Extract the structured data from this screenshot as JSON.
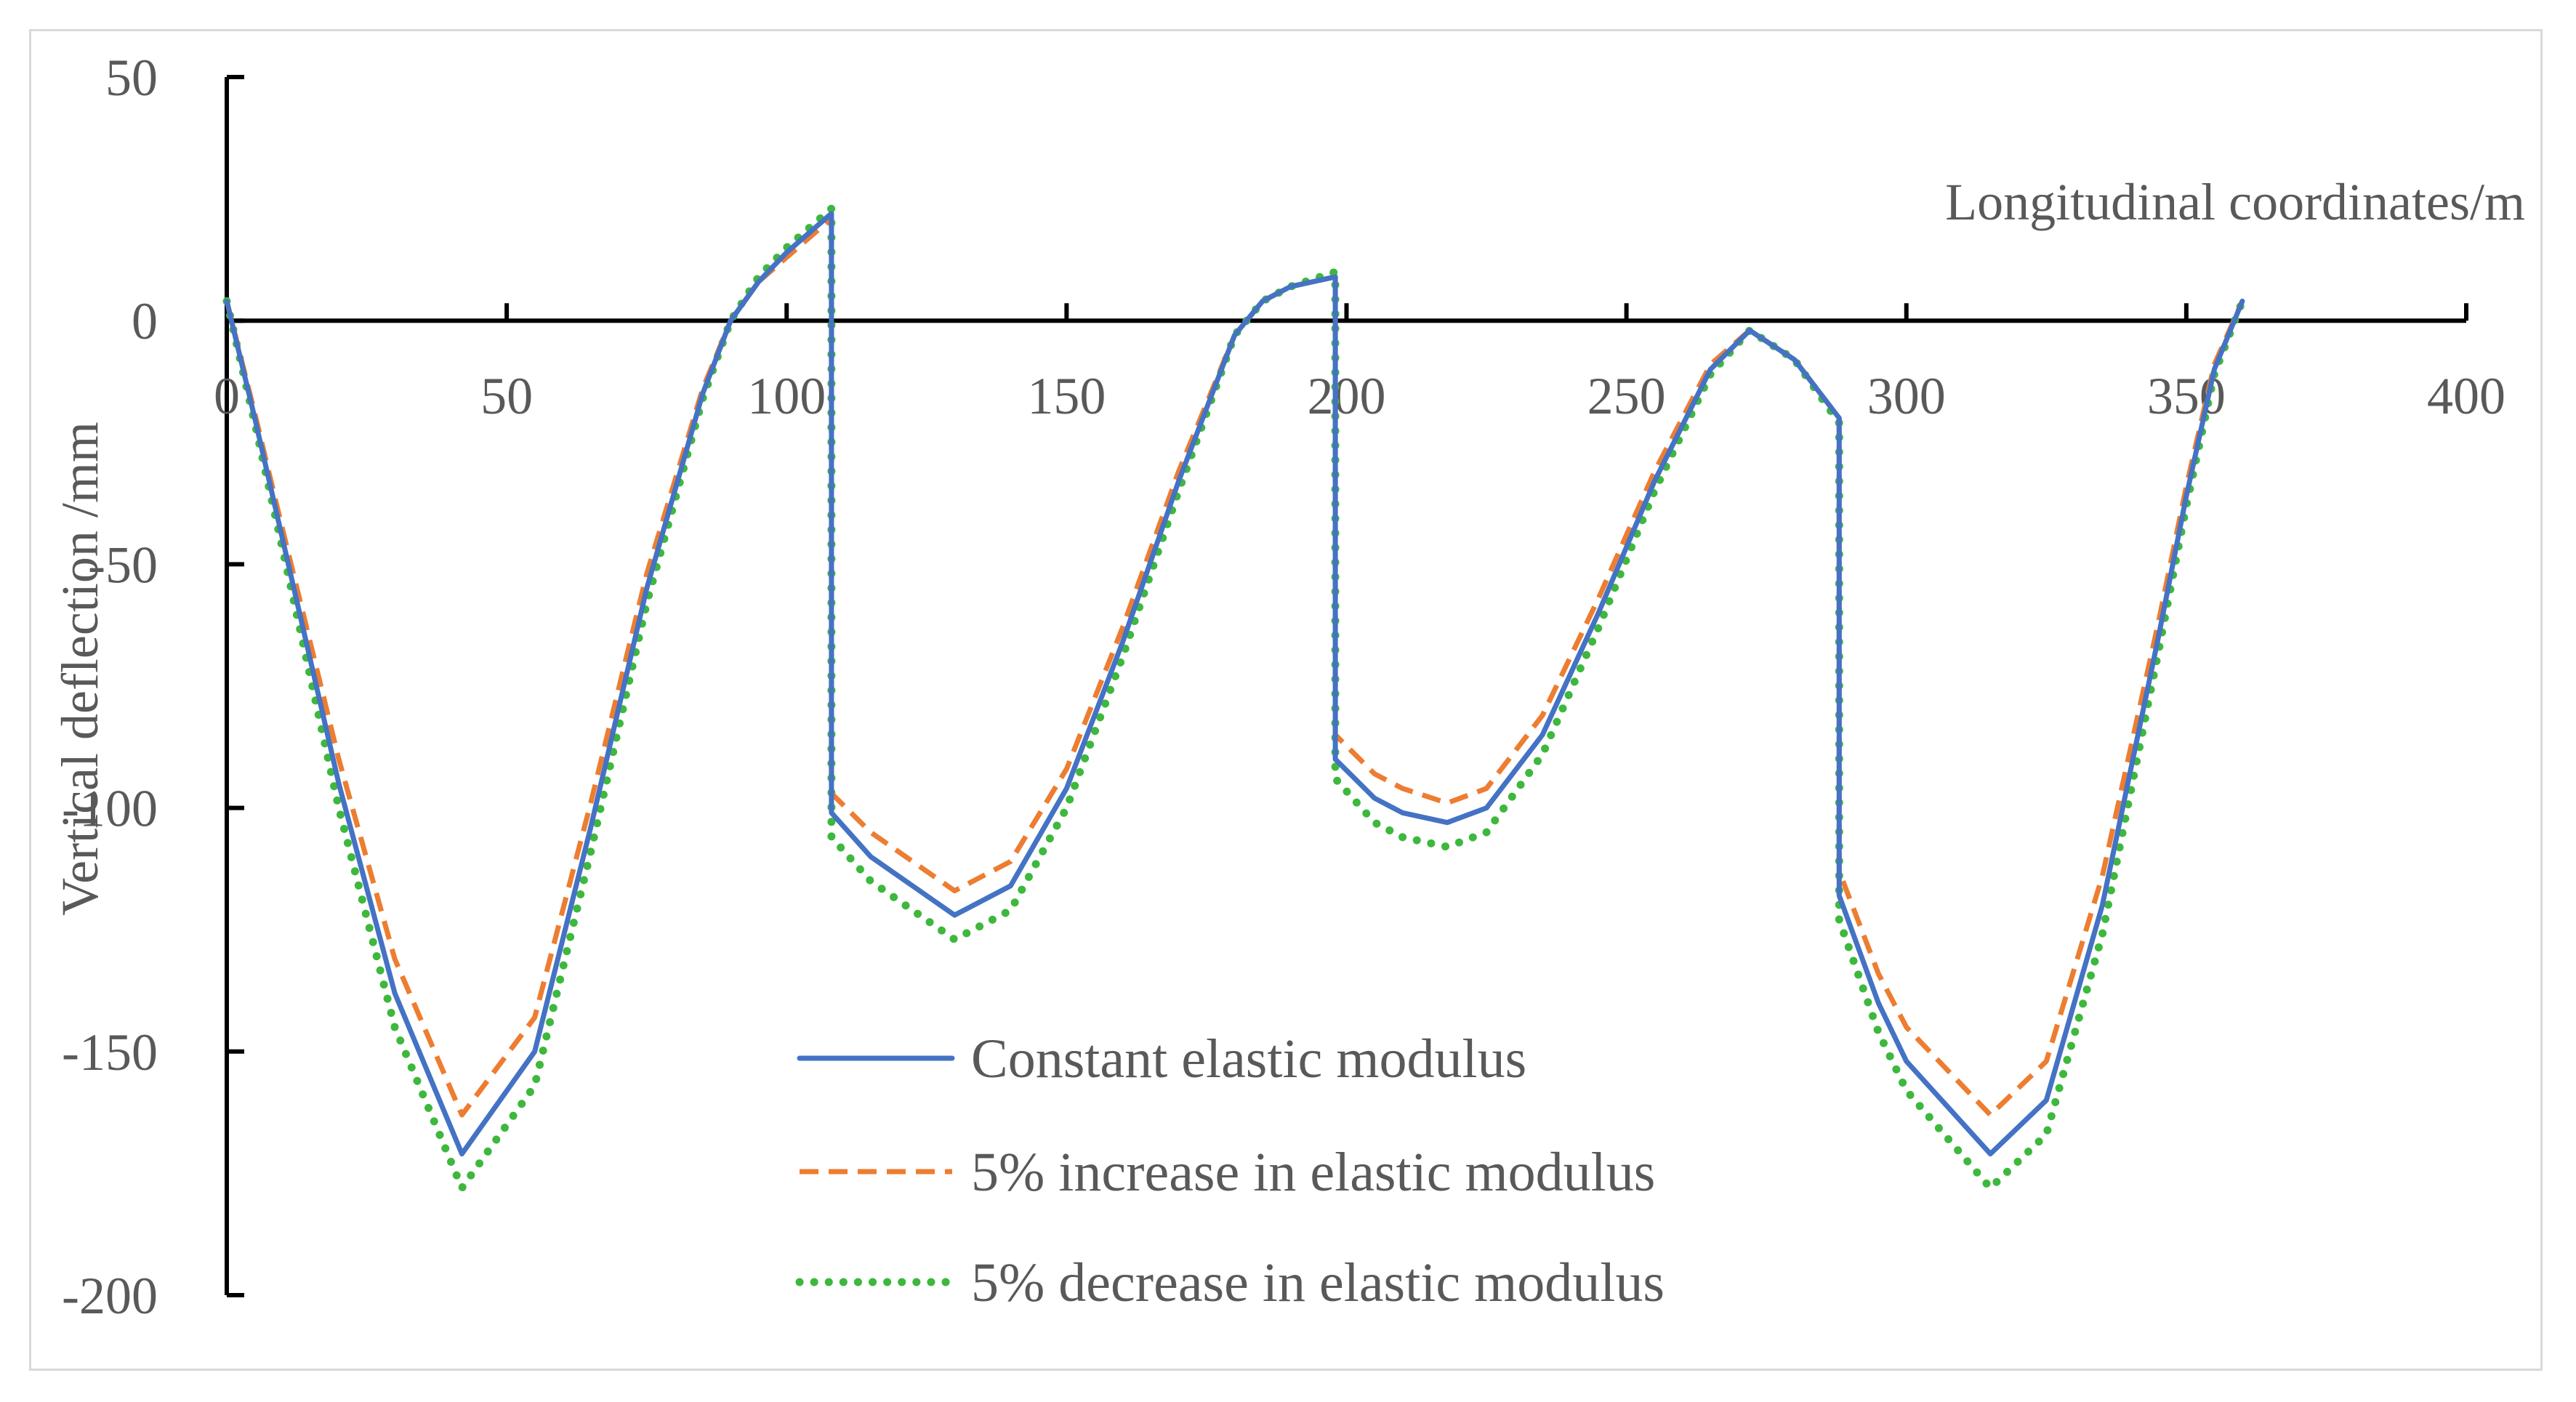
{
  "chart_data": {
    "type": "line",
    "title": "",
    "xlabel": "Longitudinal coordinates/m",
    "ylabel": "Vertical deflection /mm",
    "xlim": [
      0,
      400
    ],
    "ylim": [
      -200,
      50
    ],
    "x_ticks": [
      "0",
      "50",
      "100",
      "150",
      "200",
      "250",
      "300",
      "350",
      "400"
    ],
    "y_ticks": [
      "50",
      "0",
      "-50",
      "-100",
      "-150",
      "-200"
    ],
    "grid": false,
    "legend_position": "bottom-center",
    "series": [
      {
        "name": "Constant elastic modulus",
        "color": "#4472C4",
        "style": "solid",
        "x": [
          0,
          5,
          10,
          20,
          30,
          42,
          55,
          65,
          75,
          85,
          90,
          95,
          100,
          108,
          108,
          115,
          120,
          130,
          140,
          150,
          160,
          170,
          180,
          185,
          190,
          198,
          198,
          205,
          210,
          218,
          225,
          235,
          245,
          255,
          265,
          272,
          280,
          288,
          288,
          295,
          300,
          315,
          325,
          335,
          345,
          350,
          355,
          360
        ],
        "values": [
          4,
          -20,
          -45,
          -95,
          -138,
          -171,
          -150,
          -104,
          -55,
          -15,
          0,
          8,
          14,
          22,
          -101,
          -110,
          -114,
          -122,
          -116,
          -96,
          -66,
          -33,
          -3,
          4,
          7,
          9,
          -90,
          -98,
          -101,
          -103,
          -100,
          -85,
          -60,
          -33,
          -10,
          -2,
          -8,
          -20,
          -118,
          -140,
          -152,
          -171,
          -160,
          -120,
          -65,
          -36,
          -10,
          4
        ]
      },
      {
        "name": "5% increase in elastic modulus",
        "color": "#ED7D31",
        "style": "dashed",
        "x": [
          0,
          5,
          10,
          20,
          30,
          42,
          55,
          65,
          75,
          85,
          90,
          95,
          100,
          108,
          108,
          115,
          120,
          130,
          140,
          150,
          160,
          170,
          180,
          185,
          190,
          198,
          198,
          205,
          210,
          218,
          225,
          235,
          245,
          255,
          265,
          272,
          280,
          288,
          288,
          295,
          300,
          315,
          325,
          335,
          345,
          350,
          355,
          360
        ],
        "values": [
          4,
          -19,
          -43,
          -90,
          -131,
          -163,
          -143,
          -99,
          -52,
          -14,
          0,
          8,
          13,
          21,
          -97,
          -105,
          -109,
          -117,
          -111,
          -92,
          -63,
          -31,
          -3,
          4,
          7,
          9,
          -85,
          -93,
          -96,
          -99,
          -96,
          -81,
          -57,
          -31,
          -9,
          -2,
          -8,
          -20,
          -113,
          -134,
          -145,
          -163,
          -152,
          -114,
          -62,
          -34,
          -9,
          4
        ]
      },
      {
        "name": "5% decrease in elastic modulus",
        "color": "#3DB83D",
        "style": "dotted",
        "x": [
          0,
          5,
          10,
          20,
          30,
          42,
          55,
          65,
          75,
          85,
          90,
          95,
          100,
          108,
          108,
          115,
          120,
          130,
          140,
          150,
          160,
          170,
          180,
          185,
          190,
          198,
          198,
          205,
          210,
          218,
          225,
          235,
          245,
          255,
          265,
          272,
          280,
          288,
          288,
          295,
          300,
          315,
          325,
          335,
          345,
          350,
          355,
          360
        ],
        "values": [
          4,
          -21,
          -47,
          -100,
          -145,
          -178,
          -157,
          -109,
          -58,
          -16,
          0,
          9,
          15,
          23,
          -106,
          -115,
          -119,
          -127,
          -121,
          -100,
          -69,
          -35,
          -3,
          4,
          7,
          10,
          -94,
          -103,
          -106,
          -108,
          -105,
          -89,
          -63,
          -35,
          -11,
          -2,
          -8,
          -21,
          -123,
          -146,
          -158,
          -178,
          -167,
          -126,
          -68,
          -38,
          -11,
          4
        ]
      }
    ]
  }
}
